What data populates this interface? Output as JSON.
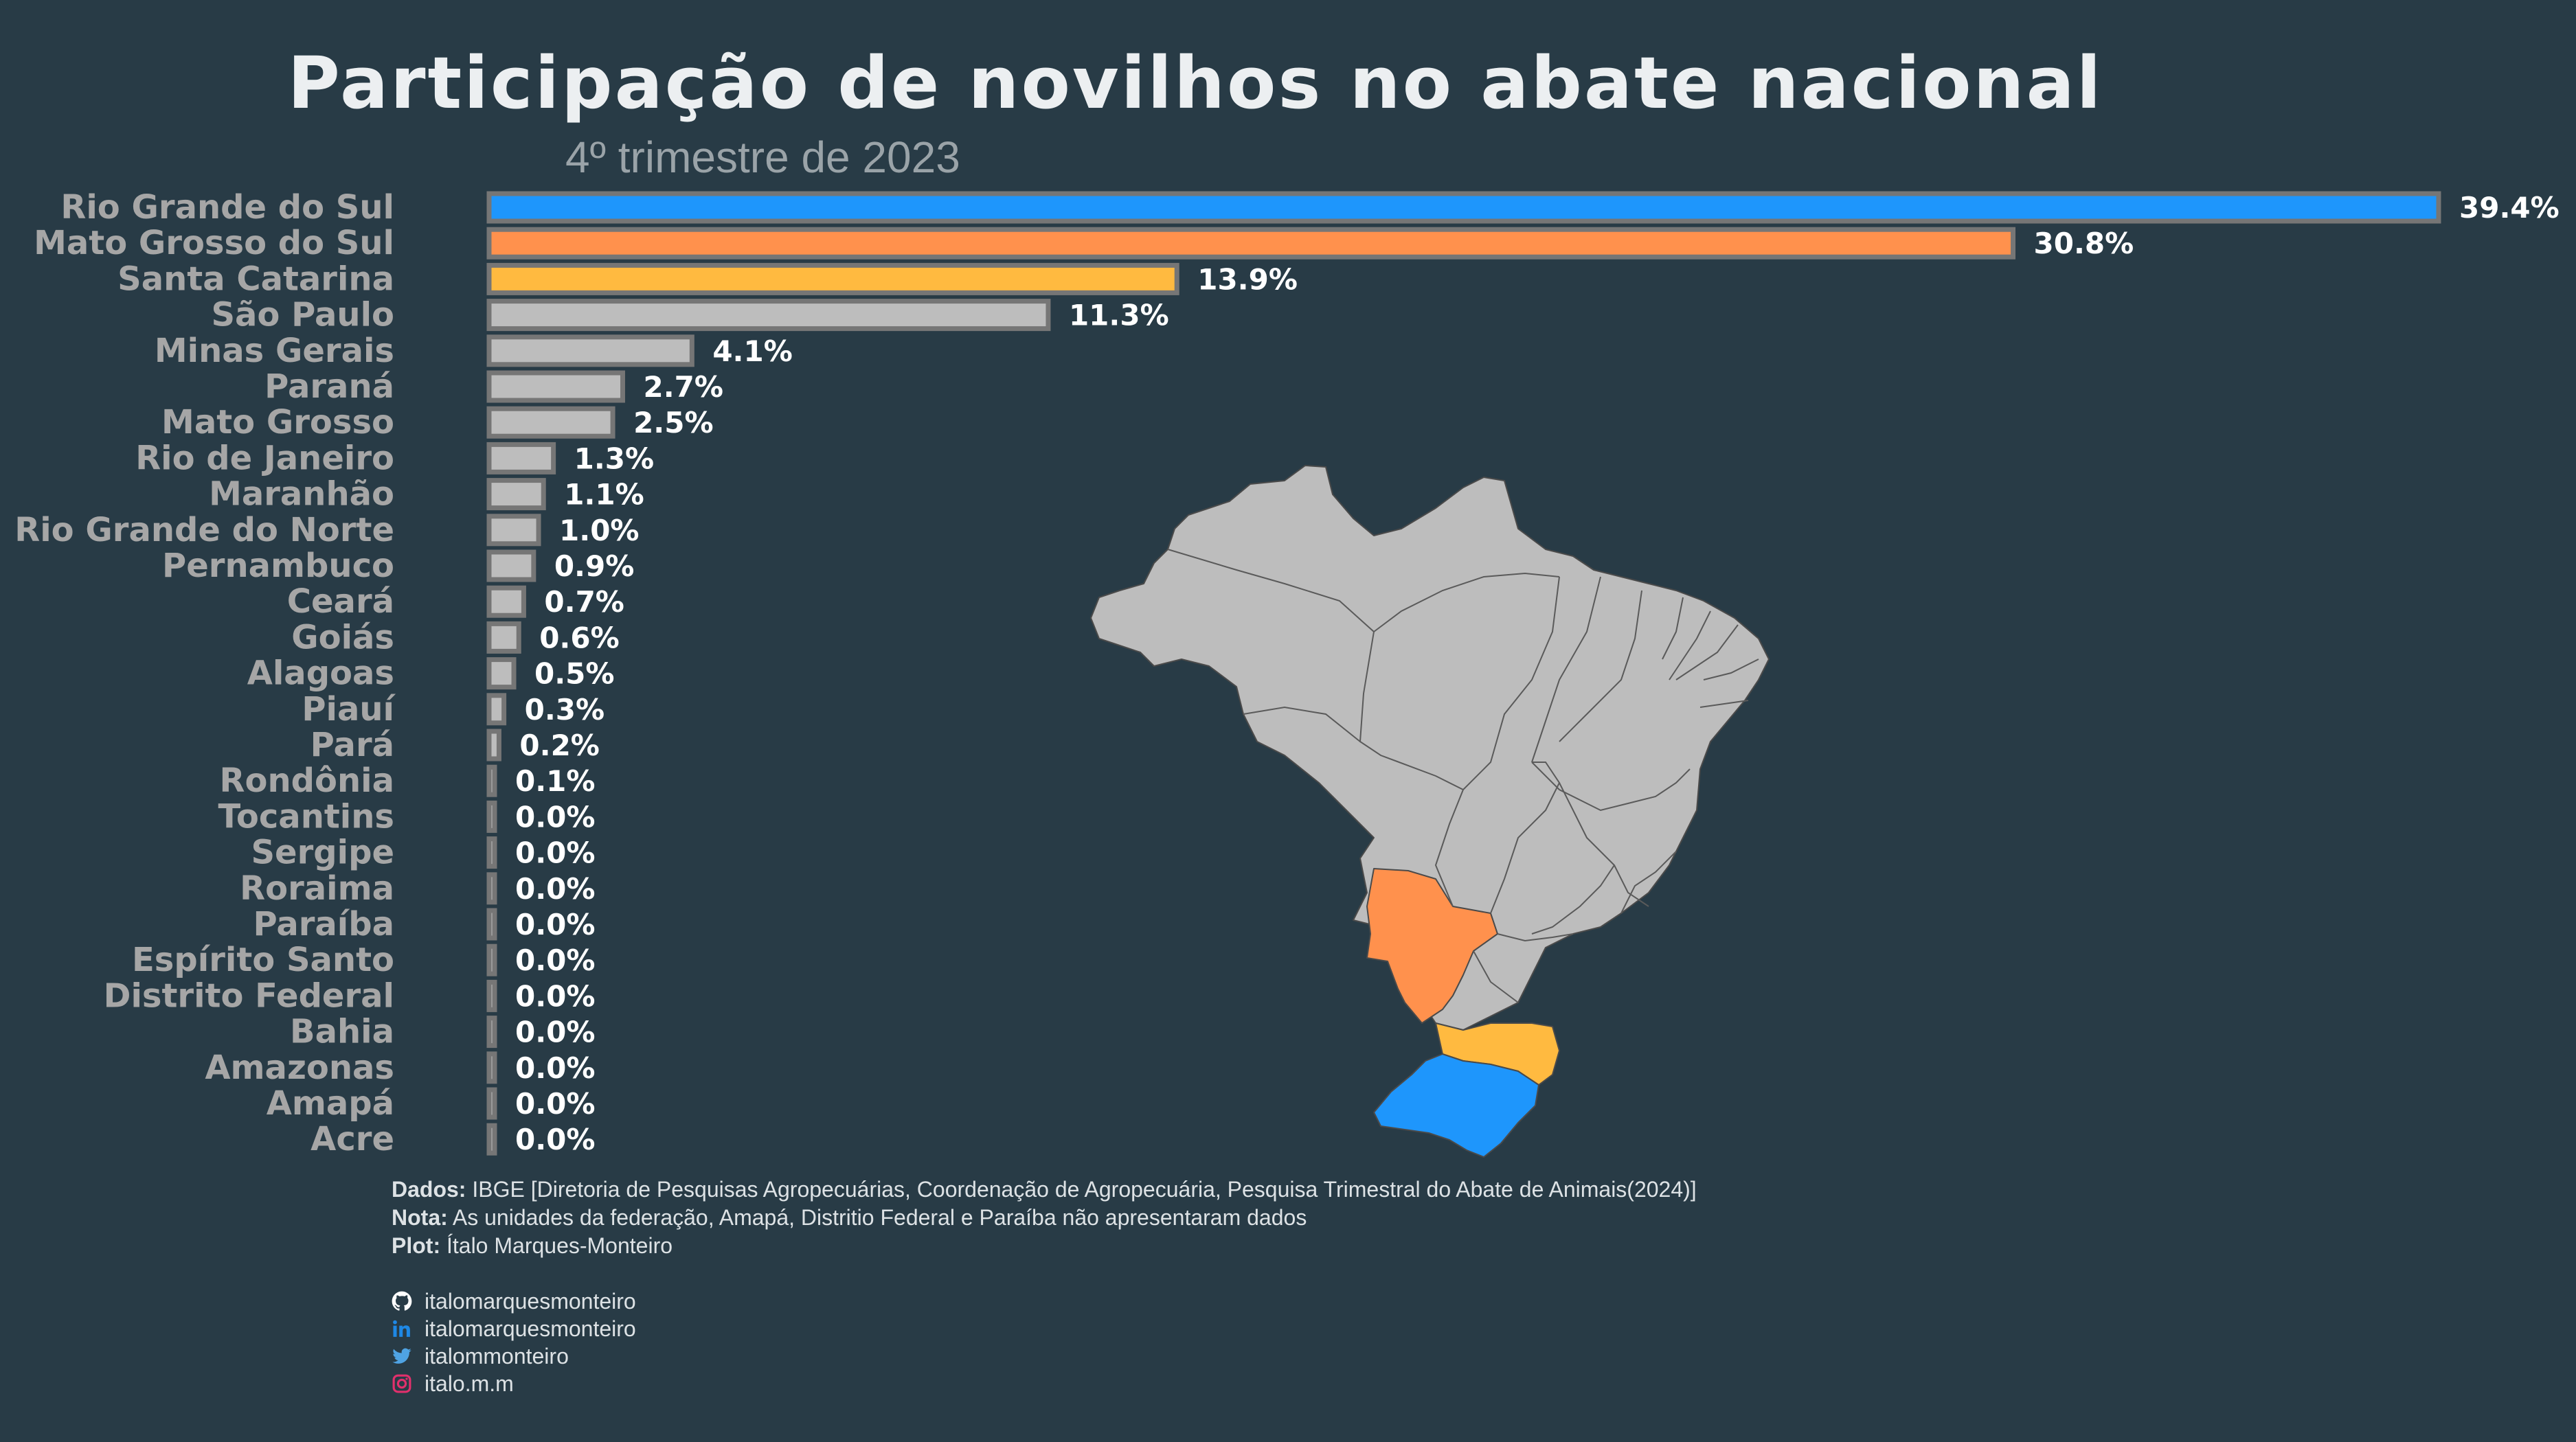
{
  "title": "Participação de novilhos no abate nacional",
  "subtitle": "4º trimestre de 2023",
  "colors": {
    "background": "#283B46",
    "highlight_1": "#1E96FC",
    "highlight_2": "#FF914D",
    "highlight_3": "#FFBA40",
    "default_bar": "#BDBDBD",
    "bar_border": "#767676",
    "map_states": "#BDBDBD"
  },
  "chart_data": {
    "type": "bar",
    "orientation": "horizontal",
    "categories": [
      "Rio Grande do Sul",
      "Mato Grosso do Sul",
      "Santa Catarina",
      "São Paulo",
      "Minas Gerais",
      "Paraná",
      "Mato Grosso",
      "Rio de Janeiro",
      "Maranhão",
      "Rio Grande do Norte",
      "Pernambuco",
      "Ceará",
      "Goiás",
      "Alagoas",
      "Piauí",
      "Pará",
      "Rondônia",
      "Tocantins",
      "Sergipe",
      "Roraima",
      "Paraíba",
      "Espírito Santo",
      "Distrito Federal",
      "Bahia",
      "Amazonas",
      "Amapá",
      "Acre"
    ],
    "values": [
      39.4,
      30.8,
      13.9,
      11.3,
      4.1,
      2.7,
      2.5,
      1.3,
      1.1,
      1.0,
      0.9,
      0.7,
      0.6,
      0.5,
      0.3,
      0.2,
      0.1,
      0.0,
      0.0,
      0.0,
      0.0,
      0.0,
      0.0,
      0.0,
      0.0,
      0.0,
      0.0
    ],
    "labels": [
      "39.4%",
      "30.8%",
      "13.9%",
      "11.3%",
      "4.1%",
      "2.7%",
      "2.5%",
      "1.3%",
      "1.1%",
      "1.0%",
      "0.9%",
      "0.7%",
      "0.6%",
      "0.5%",
      "0.3%",
      "0.2%",
      "0.1%",
      "0.0%",
      "0.0%",
      "0.0%",
      "0.0%",
      "0.0%",
      "0.0%",
      "0.0%",
      "0.0%",
      "0.0%",
      "0.0%"
    ],
    "bar_colors": [
      "#1E96FC",
      "#FF914D",
      "#FFBA40",
      "#BDBDBD",
      "#BDBDBD",
      "#BDBDBD",
      "#BDBDBD",
      "#BDBDBD",
      "#BDBDBD",
      "#BDBDBD",
      "#BDBDBD",
      "#BDBDBD",
      "#BDBDBD",
      "#BDBDBD",
      "#BDBDBD",
      "#BDBDBD",
      "#BDBDBD",
      "#BDBDBD",
      "#BDBDBD",
      "#BDBDBD",
      "#BDBDBD",
      "#BDBDBD",
      "#BDBDBD",
      "#BDBDBD",
      "#BDBDBD",
      "#BDBDBD",
      "#BDBDBD"
    ],
    "xlim": [
      0,
      39.4
    ],
    "grid": false,
    "legend": "none",
    "inset_map": {
      "highlighted_states": [
        {
          "state": "Rio Grande do Sul",
          "color": "#1E96FC"
        },
        {
          "state": "Mato Grosso do Sul",
          "color": "#FF914D"
        },
        {
          "state": "Santa Catarina",
          "color": "#FFBA40"
        }
      ]
    }
  },
  "footer": {
    "data_label": "Dados:",
    "data_text": "IBGE [Diretoria de Pesquisas Agropecuárias, Coordenação de Agropecuária, Pesquisa Trimestral do Abate de Animais(2024)]",
    "note_label": "Nota:",
    "note_text": "As unidades da federação, Amapá, Distritio Federal e Paraíba não apresentaram dados",
    "plot_label": "Plot:",
    "plot_text": "Ítalo Marques-Monteiro"
  },
  "social": [
    {
      "icon": "github-icon",
      "handle": "italomarquesmonteiro",
      "color": "#FFFFFF"
    },
    {
      "icon": "linkedin-icon",
      "handle": "italomarquesmonteiro",
      "color": "#1E88E5"
    },
    {
      "icon": "twitter-icon",
      "handle": "italommonteiro",
      "color": "#4FA3E3"
    },
    {
      "icon": "instagram-icon",
      "handle": "italo.m.m",
      "color": "#E1306C"
    }
  ]
}
